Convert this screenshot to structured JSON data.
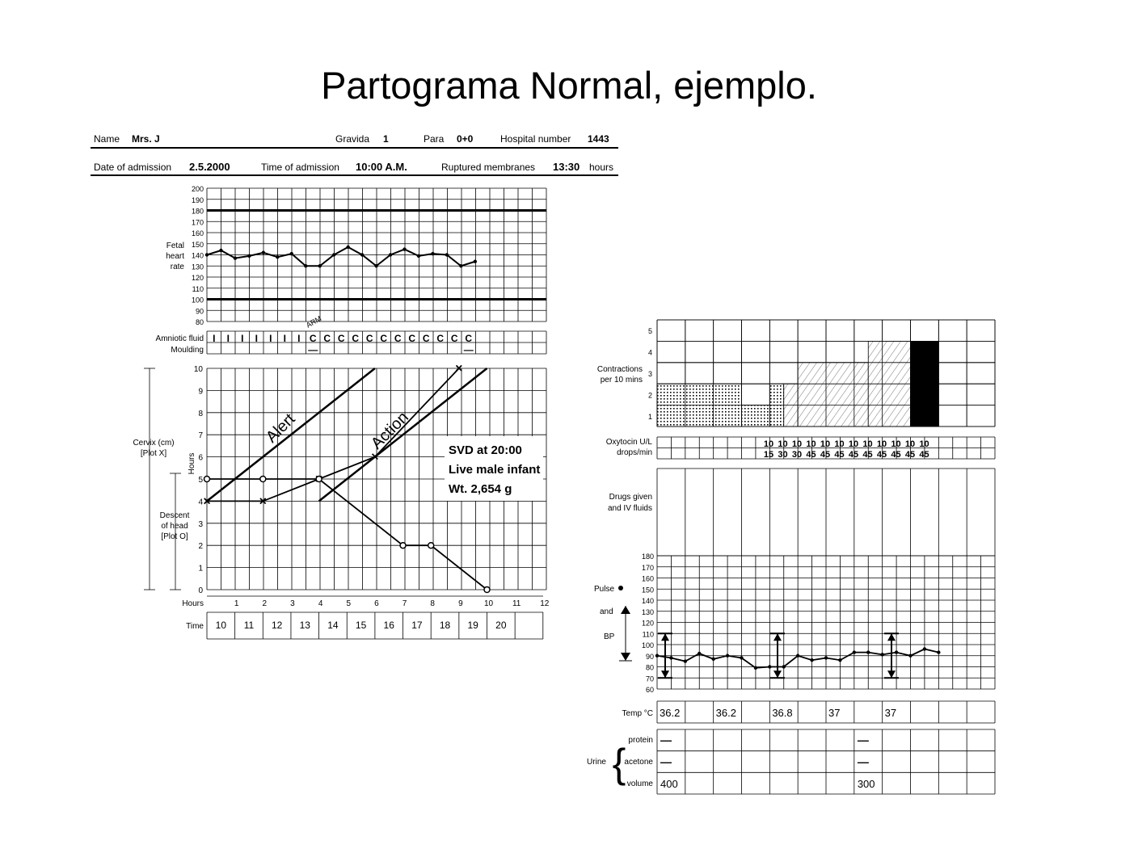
{
  "title": "Partograma Normal, ejemplo.",
  "header": {
    "name_label": "Name",
    "name_value": "Mrs. J",
    "gravida_label": "Gravida",
    "gravida_value": "1",
    "para_label": "Para",
    "para_value": "0+0",
    "hospital_label": "Hospital number",
    "hospital_value": "1443",
    "admission_label": "Date of admission",
    "admission_value": "2.5.2000",
    "time_label": "Time of admission",
    "time_value": "10:00 A.M.",
    "membranes_label": "Ruptured membranes",
    "membranes_value": "13:30",
    "membranes_unit": "hours"
  },
  "fhr": {
    "label": [
      "Fetal",
      "heart",
      "rate"
    ],
    "ticks": [
      200,
      190,
      180,
      170,
      160,
      150,
      140,
      130,
      120,
      110,
      100,
      90,
      80
    ],
    "values": [
      140,
      144,
      137,
      139,
      142,
      138,
      141,
      130,
      130,
      140,
      147,
      140,
      130,
      140,
      145,
      139,
      141,
      140,
      130,
      134
    ],
    "limits": [
      180,
      100
    ]
  },
  "fluid": {
    "amniotic_label": "Amniotic fluid",
    "moulding_label": "Moulding",
    "arm_label": "ARM",
    "amniotic": [
      "I",
      "I",
      "I",
      "I",
      "I",
      "I",
      "I",
      "C",
      "C",
      "C",
      "C",
      "C",
      "C",
      "C",
      "C",
      "C",
      "C",
      "C",
      "C"
    ],
    "moulding_cols": [
      7,
      18
    ],
    "moulding_mark": "—"
  },
  "cervix": {
    "cervix_label": [
      "Cervix (cm)",
      "[Plot X]"
    ],
    "descent_label": [
      "Descent",
      "of head",
      "[Plot O]"
    ],
    "side_hours": "Hours",
    "yticks": [
      10,
      9,
      8,
      7,
      6,
      5,
      4,
      3,
      2,
      1,
      0
    ],
    "hours_label": "Hours",
    "hours": [
      1,
      2,
      3,
      4,
      5,
      6,
      7,
      8,
      9,
      10,
      11,
      12
    ],
    "time_label": "Time",
    "times": [
      "10",
      "11",
      "12",
      "13",
      "14",
      "15",
      "16",
      "17",
      "18",
      "19",
      "20"
    ],
    "alert_label": "Alert",
    "action_label": "Action",
    "svd": [
      "SVD at 20:00",
      "Live male infant",
      "Wt. 2,654 g"
    ],
    "x_points": [
      {
        "h": 0,
        "cm": 4
      },
      {
        "h": 2,
        "cm": 4
      },
      {
        "h": 4,
        "cm": 5
      },
      {
        "h": 6,
        "cm": 6
      },
      {
        "h": 9,
        "cm": 10
      }
    ],
    "o_points": [
      {
        "h": 0,
        "fifths": 5
      },
      {
        "h": 2,
        "fifths": 5
      },
      {
        "h": 4,
        "fifths": 5
      },
      {
        "h": 7,
        "fifths": 2
      },
      {
        "h": 8,
        "fifths": 2
      },
      {
        "h": 10,
        "fifths": 0
      }
    ]
  },
  "contractions": {
    "label": [
      "Contractions",
      "per 10 mins"
    ],
    "yticks": [
      5,
      4,
      3,
      2,
      1
    ],
    "values": [
      2,
      2,
      2,
      1,
      2,
      3,
      3,
      3,
      4,
      4,
      5,
      0,
      0,
      0,
      0,
      0,
      0
    ],
    "types": [
      "dotted",
      "dotted",
      "dotted",
      "dotted",
      "dotted",
      "hatched",
      "hatched",
      "hatched",
      "hatched",
      "hatched",
      "solid"
    ]
  },
  "oxytocin": {
    "label": [
      "Oxytocin U/L",
      "drops/min"
    ],
    "units": [
      "",
      "",
      "",
      "",
      "",
      "",
      "",
      "",
      "10",
      "10",
      "10",
      "10",
      "10",
      "10",
      "10",
      "10",
      "10",
      "10",
      "10",
      "10",
      ""
    ],
    "drops": [
      "",
      "",
      "",
      "",
      "",
      "",
      "",
      "",
      "15",
      "30",
      "30",
      "45",
      "45",
      "45",
      "45",
      "45",
      "45",
      "45",
      "45",
      "45",
      ""
    ]
  },
  "drugs": {
    "label": [
      "Drugs given",
      "and IV fluids"
    ]
  },
  "vitals": {
    "pulse_label": "Pulse",
    "and_label": "and",
    "bp_label": "BP",
    "yticks": [
      180,
      170,
      160,
      150,
      140,
      130,
      120,
      110,
      100,
      90,
      80,
      70,
      60
    ],
    "pulse": [
      90,
      88,
      85,
      92,
      87,
      90,
      88,
      79,
      80,
      80,
      90,
      86,
      88,
      86,
      93,
      93,
      91,
      93,
      90,
      96,
      93
    ],
    "bp": [
      {
        "col": 0,
        "sys": 110,
        "dia": 70
      },
      {
        "col": 4,
        "sys": 110,
        "dia": 70
      },
      {
        "col": 8,
        "sys": 110,
        "dia": 70
      }
    ]
  },
  "temp": {
    "label": "Temp °C",
    "values": [
      {
        "col": 0,
        "v": "36.2"
      },
      {
        "col": 2,
        "v": "36.2"
      },
      {
        "col": 4,
        "v": "36.8"
      },
      {
        "col": 6,
        "v": "37"
      },
      {
        "col": 8,
        "v": "37"
      }
    ]
  },
  "urine": {
    "label": "Urine",
    "rows": [
      "protein",
      "acetone",
      "volume"
    ],
    "protein": [
      {
        "col": 0,
        "v": "—"
      },
      {
        "col": 7,
        "v": "—"
      }
    ],
    "acetone": [
      {
        "col": 0,
        "v": "—"
      },
      {
        "col": 7,
        "v": "—"
      }
    ],
    "volume": [
      {
        "col": 0,
        "v": "400"
      },
      {
        "col": 7,
        "v": "300"
      }
    ]
  }
}
